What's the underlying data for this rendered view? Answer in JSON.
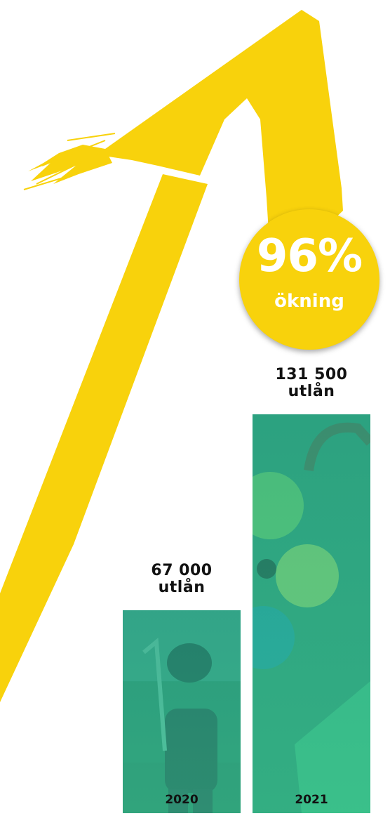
{
  "chart_data": {
    "type": "bar",
    "categories": [
      "2020",
      "2021"
    ],
    "series": [
      {
        "values": [
          67000,
          131500
        ],
        "value_labels": [
          {
            "number": "67 000",
            "unit": "utlån"
          },
          {
            "number": "131 500",
            "unit": "utlån"
          }
        ]
      }
    ],
    "annotation": {
      "percent": "96%",
      "text": "ökning"
    },
    "ylim": [
      0,
      131500
    ],
    "grid": false,
    "legend": "none"
  },
  "colors": {
    "arrow": "#f8d20c",
    "badge": "#f8d20c",
    "bar_overlay": "#2fb58a",
    "label_text": "#111111"
  },
  "decoration": {
    "arrow_icon": "upward-brush-arrow-icon"
  }
}
